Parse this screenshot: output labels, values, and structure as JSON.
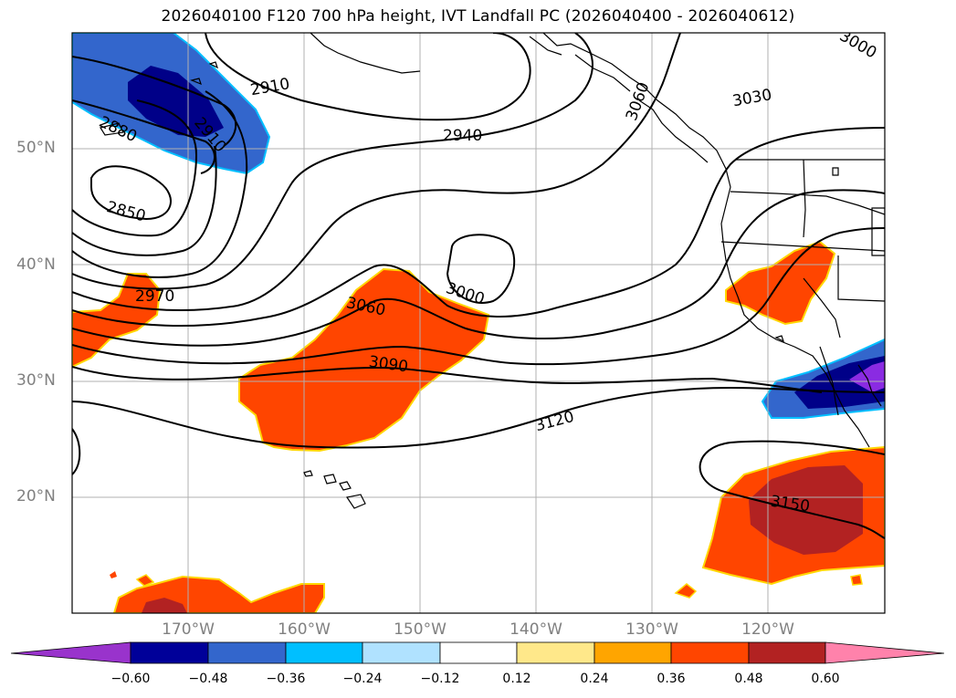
{
  "title": "2026040100 F120 700 hPa height, IVT Landfall PC (2026040400 - 2026040612)",
  "map": {
    "lon_range": [
      -180,
      -110
    ],
    "lat_range": [
      10,
      60
    ],
    "lat_labels": [
      "50°N",
      "40°N",
      "30°N",
      "20°N"
    ],
    "lon_labels": [
      "170°W",
      "160°W",
      "150°W",
      "140°W",
      "130°W",
      "120°W"
    ],
    "contour_labels": [
      "2910",
      "2880",
      "2910",
      "2850",
      "2940",
      "3030",
      "3000",
      "3060",
      "2970",
      "3000",
      "3090",
      "3120",
      "3150",
      "3060"
    ],
    "contour_interval": 30,
    "contour_levels": [
      2850,
      2880,
      2910,
      2940,
      2970,
      3000,
      3030,
      3060,
      3090,
      3120,
      3150
    ]
  },
  "colorbar": {
    "ticks": [
      "−0.60",
      "−0.48",
      "−0.36",
      "−0.24",
      "−0.12",
      "0.12",
      "0.24",
      "0.36",
      "0.48",
      "0.60"
    ],
    "colors": [
      "#9933cc",
      "#000099",
      "#3366cc",
      "#00bfff",
      "#b0e2ff",
      "#ffffff",
      "#ffe88a",
      "#ffa500",
      "#ff4500",
      "#b22222",
      "#ff82ab"
    ],
    "extend": "both"
  }
}
